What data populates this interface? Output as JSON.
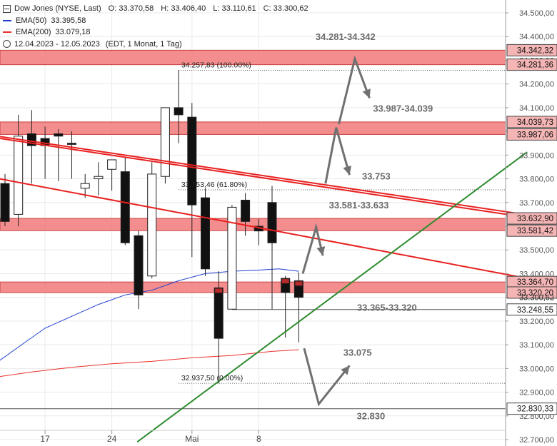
{
  "legend": {
    "instrument": "Dow Jones (NYSE, Last)",
    "open": "O: 33.370,58",
    "high": "H: 33.406,40",
    "low": "L: 33.110,61",
    "close": "C: 33.300,62",
    "ema50_label": "EMA(50)",
    "ema50_value": "33.395,58",
    "ema200_label": "EMA(200)",
    "ema200_value": "33.079,18",
    "period": "12.04.2023 - 12.05.2023",
    "settings": "(EDT, 1 Monat, 1 Tag)"
  },
  "colors": {
    "ema50": "#1f3fd0",
    "ema200": "#e8302a",
    "trend_red": "#e8201f",
    "trend_green": "#2e8b2e",
    "zone_fill": "#f27a7a",
    "arrow": "#707070"
  },
  "chart_data": {
    "type": "candlestick",
    "yaxis": {
      "min": 32700,
      "max": 34500,
      "ticks": [
        "32.700,00",
        "32.800,00",
        "32.900,00",
        "33.000,00",
        "33.100,00",
        "33.200,00",
        "33.300,00",
        "33.400,00",
        "33.500,00",
        "33.600,00",
        "33.700,00",
        "33.800,00",
        "33.900,00",
        "34.000,00",
        "34.100,00",
        "34.200,00",
        "34.300,00",
        "34.400,00",
        "34.500,00"
      ],
      "tick_values": [
        32700,
        32800,
        32900,
        33000,
        33100,
        33200,
        33300,
        33400,
        33500,
        33600,
        33700,
        33800,
        33900,
        34000,
        34100,
        34200,
        34300,
        34400,
        34500
      ]
    },
    "xaxis": {
      "labels": [
        {
          "text": "17",
          "date_index": 3
        },
        {
          "text": "24",
          "date_index": 8
        },
        {
          "text": "Mai",
          "date_index": 14
        },
        {
          "text": "8",
          "date_index": 19
        }
      ]
    },
    "candles": [
      {
        "i": 0,
        "open": 33780,
        "high": 33820,
        "low": 33600,
        "close": 33620
      },
      {
        "i": 1,
        "open": 33650,
        "high": 34070,
        "low": 33600,
        "close": 33980
      },
      {
        "i": 2,
        "open": 33990,
        "high": 34090,
        "low": 33780,
        "close": 33940
      },
      {
        "i": 3,
        "open": 33970,
        "high": 34020,
        "low": 33800,
        "close": 33940
      },
      {
        "i": 4,
        "open": 33990,
        "high": 34010,
        "low": 33790,
        "close": 33980
      },
      {
        "i": 5,
        "open": 33950,
        "high": 34000,
        "low": 33800,
        "close": 33945
      },
      {
        "i": 6,
        "open": 33760,
        "high": 33820,
        "low": 33720,
        "close": 33780
      },
      {
        "i": 7,
        "open": 33800,
        "high": 33870,
        "low": 33730,
        "close": 33810
      },
      {
        "i": 8,
        "open": 33840,
        "high": 33870,
        "low": 33750,
        "close": 33880
      },
      {
        "i": 9,
        "open": 33830,
        "high": 33890,
        "low": 33520,
        "close": 33530
      },
      {
        "i": 10,
        "open": 33560,
        "high": 33580,
        "low": 33250,
        "close": 33310
      },
      {
        "i": 11,
        "open": 33390,
        "high": 33870,
        "low": 33380,
        "close": 33820
      },
      {
        "i": 12,
        "open": 33810,
        "high": 34100,
        "low": 33780,
        "close": 34100
      },
      {
        "i": 13,
        "open": 34100,
        "high": 34258,
        "low": 33950,
        "close": 34070
      },
      {
        "i": 14,
        "open": 34060,
        "high": 34120,
        "low": 33470,
        "close": 33690
      },
      {
        "i": 15,
        "open": 33720,
        "high": 33760,
        "low": 33390,
        "close": 33420
      },
      {
        "i": 16,
        "open": 33340,
        "high": 33410,
        "low": 32937,
        "close": 33127
      },
      {
        "i": 17,
        "open": 33250,
        "high": 33690,
        "low": 33250,
        "close": 33680
      },
      {
        "i": 18,
        "open": 33710,
        "high": 33740,
        "low": 33560,
        "close": 33620
      },
      {
        "i": 19,
        "open": 33600,
        "high": 33630,
        "low": 33520,
        "close": 33580
      },
      {
        "i": 20,
        "open": 33700,
        "high": 33770,
        "low": 33250,
        "close": 33530
      },
      {
        "i": 21,
        "open": 33380,
        "high": 33390,
        "low": 33130,
        "close": 33320
      },
      {
        "i": 22,
        "open": 33370,
        "high": 33406,
        "low": 33110,
        "close": 33300
      }
    ],
    "ema50": [
      {
        "i": -0.5,
        "v": 33030
      },
      {
        "i": 1,
        "v": 33090
      },
      {
        "i": 3,
        "v": 33170
      },
      {
        "i": 5,
        "v": 33220
      },
      {
        "i": 7,
        "v": 33270
      },
      {
        "i": 9,
        "v": 33310
      },
      {
        "i": 11,
        "v": 33330
      },
      {
        "i": 13,
        "v": 33370
      },
      {
        "i": 15,
        "v": 33400
      },
      {
        "i": 17,
        "v": 33410
      },
      {
        "i": 19,
        "v": 33415
      },
      {
        "i": 20.5,
        "v": 33420
      },
      {
        "i": 22,
        "v": 33410
      }
    ],
    "ema200": [
      {
        "i": -0.5,
        "v": 32965
      },
      {
        "i": 2,
        "v": 32985
      },
      {
        "i": 5,
        "v": 33005
      },
      {
        "i": 8,
        "v": 33020
      },
      {
        "i": 11,
        "v": 33030
      },
      {
        "i": 14,
        "v": 33045
      },
      {
        "i": 17,
        "v": 33055
      },
      {
        "i": 20,
        "v": 33072
      },
      {
        "i": 22,
        "v": 33079
      }
    ],
    "zones": [
      {
        "low": 34281.36,
        "high": 34342.32
      },
      {
        "low": 33987.06,
        "high": 34039.73
      },
      {
        "low": 33581.42,
        "high": 33632.9
      },
      {
        "low": 33320.2,
        "high": 33364.7
      }
    ],
    "price_tags": [
      {
        "value": 34342.32,
        "label": "34.342,32",
        "style": "zone"
      },
      {
        "value": 34281.36,
        "label": "34.281,36",
        "style": "zone"
      },
      {
        "value": 34039.73,
        "label": "34.039,73",
        "style": "zone"
      },
      {
        "value": 33987.06,
        "label": "33.987,06",
        "style": "zone"
      },
      {
        "value": 33632.9,
        "label": "33.632,90",
        "style": "zone"
      },
      {
        "value": 33581.42,
        "label": "33.581,42",
        "style": "zone"
      },
      {
        "value": 33364.7,
        "label": "33.364,70",
        "style": "zone"
      },
      {
        "value": 33320.2,
        "label": "33.320,20",
        "style": "zone"
      },
      {
        "value": 33300.62,
        "label": "33.300,62",
        "style": "hidden"
      },
      {
        "value": 33248.55,
        "label": "33.248,55",
        "style": "level"
      },
      {
        "value": 32830.33,
        "label": "32.830,33",
        "style": "level"
      }
    ],
    "fib": [
      {
        "value": 34257.83,
        "label": "34.257,83 (100.00%)"
      },
      {
        "value": 33753.46,
        "label": "33.753,46 (61.80%)"
      },
      {
        "value": 32937.5,
        "label": "32.937,50 (0.00%)"
      }
    ],
    "horizontal_levels": [
      {
        "value": 33248.55,
        "from_i": 17
      },
      {
        "value": 32830.33,
        "from_i": -1
      }
    ],
    "trendlines": [
      {
        "color": "trend_red",
        "width": 2,
        "from": {
          "i": -0.6,
          "v": 33972
        },
        "to": {
          "i": 39.1,
          "v": 33637
        }
      },
      {
        "color": "trend_red",
        "width": 2,
        "from": {
          "i": -0.6,
          "v": 33980
        },
        "to": {
          "i": 39.1,
          "v": 33648
        }
      },
      {
        "color": "trend_red",
        "width": 2,
        "from": {
          "i": -0.6,
          "v": 33802
        },
        "to": {
          "i": 39.1,
          "v": 33380
        }
      },
      {
        "color": "trend_green",
        "width": 2,
        "from": {
          "i": 9.9,
          "v": 32690
        },
        "to": {
          "i": 39.1,
          "v": 33913
        }
      }
    ],
    "annotations": [
      {
        "text": "34.281-34.342",
        "i": 25.5,
        "v": 34386
      },
      {
        "text": "33.987-34.039",
        "i": 29.8,
        "v": 34083
      },
      {
        "text": "33.753",
        "i": 27.8,
        "v": 33797
      },
      {
        "text": "33.581-33.633",
        "i": 26.5,
        "v": 33676
      },
      {
        "text": "33.365-33.320",
        "i": 28.6,
        "v": 33244
      },
      {
        "text": "33.075",
        "i": 26.4,
        "v": 33053
      },
      {
        "text": "32.830",
        "i": 27.4,
        "v": 32786
      }
    ],
    "arrows": [
      {
        "points": [
          [
            25.0,
            34030
          ],
          [
            26.2,
            34306
          ],
          [
            27.3,
            34140
          ]
        ]
      },
      {
        "points": [
          [
            24.0,
            33780
          ],
          [
            24.8,
            34016
          ],
          [
            25.8,
            33816
          ]
        ]
      },
      {
        "points": [
          [
            22.3,
            33400
          ],
          [
            23.3,
            33596
          ],
          [
            23.8,
            33476
          ]
        ]
      },
      {
        "points": [
          [
            22.4,
            33085
          ],
          [
            23.5,
            32850
          ],
          [
            25.8,
            33012
          ]
        ]
      }
    ]
  }
}
